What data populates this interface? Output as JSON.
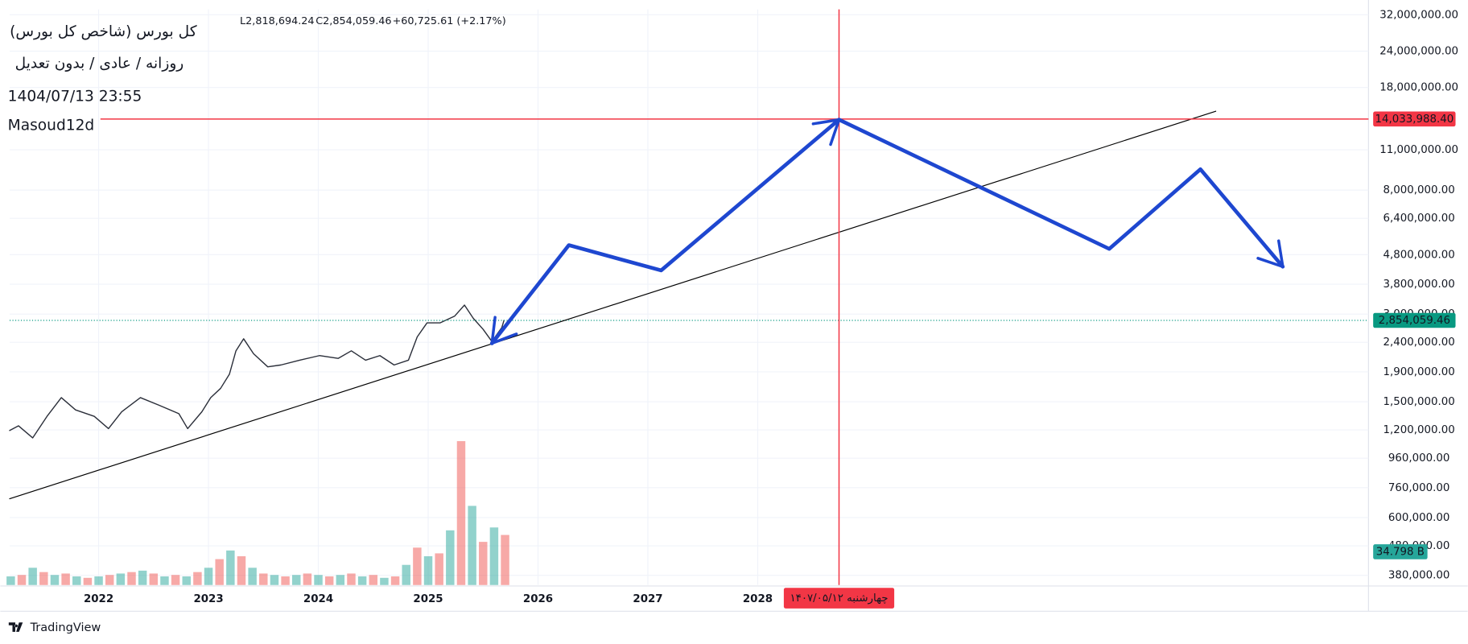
{
  "chart_data": {
    "type": "line",
    "title": "کل بورس (شاخص کل بورس)",
    "subtitle": "روزانه / عادی / بدون تعدیل",
    "timestamp": "1404/07/13 23:55",
    "author": "Masoud12d",
    "ohlc": [
      "L2,818,694.24",
      "C2,854,059.46",
      "+60,725.61 (+2.17%)"
    ],
    "brand": "TradingView",
    "log_scale": true,
    "grid": true,
    "xlim": [
      2021.19,
      2033.56
    ],
    "xticks": [
      2022,
      2023,
      2024,
      2025,
      2026,
      2027,
      2028
    ],
    "ylim": [
      352000,
      33400000
    ],
    "yticks": [
      {
        "value": 32000000,
        "label": "32,000,000.00"
      },
      {
        "value": 24000000,
        "label": "24,000,000.00"
      },
      {
        "value": 18000000,
        "label": "18,000,000.00"
      },
      {
        "value": 11000000,
        "label": "11,000,000.00"
      },
      {
        "value": 8000000,
        "label": "8,000,000.00"
      },
      {
        "value": 6400000,
        "label": "6,400,000.00"
      },
      {
        "value": 4800000,
        "label": "4,800,000.00"
      },
      {
        "value": 3800000,
        "label": "3,800,000.00"
      },
      {
        "value": 3000000,
        "label": "3,000,000.00"
      },
      {
        "value": 2400000,
        "label": "2,400,000.00"
      },
      {
        "value": 1900000,
        "label": "1,900,000.00"
      },
      {
        "value": 1500000,
        "label": "1,500,000.00"
      },
      {
        "value": 1200000,
        "label": "1,200,000.00"
      },
      {
        "value": 960000,
        "label": "960,000.00"
      },
      {
        "value": 760000,
        "label": "760,000.00"
      },
      {
        "value": 600000,
        "label": "600,000.00"
      },
      {
        "value": 480000,
        "label": "480,000.00"
      },
      {
        "value": 380000,
        "label": "380,000.00"
      }
    ],
    "series": [
      {
        "name": "کل بورس",
        "color": "#2a2e39",
        "x": [
          2021.19,
          2021.27,
          2021.4,
          2021.53,
          2021.66,
          2021.79,
          2021.96,
          2022.09,
          2022.21,
          2022.38,
          2022.55,
          2022.73,
          2022.81,
          2022.94,
          2023.02,
          2023.11,
          2023.19,
          2023.25,
          2023.32,
          2023.41,
          2023.54,
          2023.66,
          2023.83,
          2024.01,
          2024.18,
          2024.3,
          2024.43,
          2024.56,
          2024.69,
          2024.82,
          2024.9,
          2024.99,
          2025.11,
          2025.24,
          2025.33,
          2025.41,
          2025.5,
          2025.58,
          2025.67,
          2025.69
        ],
        "values": [
          1195000,
          1240000,
          1127000,
          1336000,
          1549000,
          1406000,
          1336000,
          1213000,
          1386000,
          1549000,
          1459000,
          1365000,
          1213000,
          1386000,
          1549000,
          1667000,
          1864000,
          2243000,
          2468000,
          2193000,
          1977000,
          2006000,
          2083000,
          2161000,
          2113000,
          2243000,
          2083000,
          2161000,
          2006000,
          2083000,
          2506000,
          2800000,
          2800000,
          2950000,
          3222000,
          2904000,
          2659000,
          2415000,
          2698000,
          2854059.46
        ]
      }
    ],
    "last_price": 2854059.46,
    "last_price_label": "2,854,059.46",
    "hline": 14033988.4,
    "hline_label": "14,033,988.40",
    "crosshair_x": 2028.74,
    "crosshair_label": "چهارشنبه ۱۴۰۷/۰۵/۱۲",
    "trendline": {
      "color": "#000000",
      "x": [
        2021.19,
        2032.17
      ],
      "values": [
        696600,
        14930000
      ]
    },
    "projection": {
      "color": "#1e47d0",
      "x": [
        2025.58,
        2026.28,
        2027.12,
        2028.74,
        2031.2,
        2032.03,
        2032.78
      ],
      "values": [
        2380000,
        5176000,
        4236000,
        13960000,
        5025000,
        9430000,
        4365000
      ]
    },
    "volume": {
      "ylim": [
        0,
        400
      ],
      "colors": [
        "#26a69a",
        "#ef5350"
      ],
      "x": [
        2021.2,
        2021.3,
        2021.4,
        2021.5,
        2021.6,
        2021.7,
        2021.8,
        2021.9,
        2022.0,
        2022.1,
        2022.2,
        2022.3,
        2022.4,
        2022.5,
        2022.6,
        2022.7,
        2022.8,
        2022.9,
        2023.0,
        2023.1,
        2023.2,
        2023.3,
        2023.4,
        2023.5,
        2023.6,
        2023.7,
        2023.8,
        2023.9,
        2024.0,
        2024.1,
        2024.2,
        2024.3,
        2024.4,
        2024.5,
        2024.6,
        2024.7,
        2024.8,
        2024.9,
        2025.0,
        2025.1,
        2025.2,
        2025.3,
        2025.4,
        2025.5,
        2025.6,
        2025.7
      ],
      "values": [
        6,
        7,
        12,
        9,
        7,
        8,
        6,
        5,
        6,
        7,
        8,
        9,
        10,
        8,
        6,
        7,
        6,
        9,
        12,
        18,
        24,
        20,
        12,
        8,
        7,
        6,
        7,
        8,
        7,
        6,
        7,
        8,
        6,
        7,
        5,
        6,
        14,
        26,
        20,
        22,
        38,
        100,
        55,
        30,
        40,
        34.798
      ],
      "last_label": "34.798 B"
    }
  }
}
